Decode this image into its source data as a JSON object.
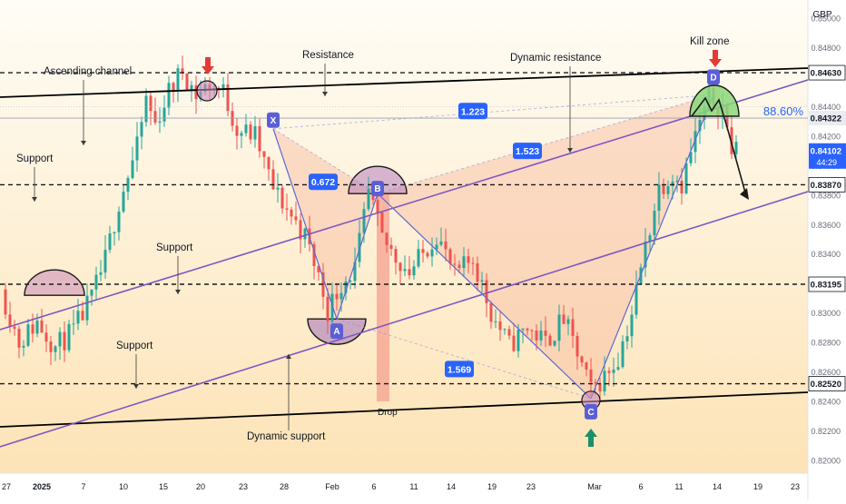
{
  "currency": "GBP",
  "colors": {
    "candle_up": "#26a69a",
    "candle_down": "#ef5350",
    "channel": "#000000",
    "dynamic": "#7e57c2",
    "harmonic_fill": "#f8bba0",
    "label_bg": "#2962ff",
    "point_bg": "#5b5fd6",
    "price_bg": "#2962ff",
    "kill_zone": "#8bd77a",
    "arrow_red": "#e53935",
    "arrow_green": "#1b8f6a",
    "bg_top": "#fffdf6",
    "bg_bottom": "#fde3b6"
  },
  "chart_data": {
    "type": "candlestick",
    "title": "",
    "xlabel": "",
    "ylabel": "",
    "ylim": [
      0.8184,
      0.8526
    ],
    "y_ticks": [
      "0.85000",
      "0.84800",
      "0.84600",
      "0.84400",
      "0.84200",
      "0.84000",
      "0.83800",
      "0.83600",
      "0.83400",
      "0.83200",
      "0.83000",
      "0.82800",
      "0.82600",
      "0.82400",
      "0.82200",
      "0.82000"
    ],
    "x_ticks": [
      "27",
      "2025",
      "7",
      "10",
      "15",
      "20",
      "23",
      "28",
      "Feb",
      "6",
      "11",
      "14",
      "19",
      "23",
      "Mar",
      "6",
      "11",
      "14",
      "19",
      "23"
    ],
    "price_anchors": [
      {
        "d": 0,
        "p": 0.8316
      },
      {
        "d": 2,
        "p": 0.828
      },
      {
        "d": 4,
        "p": 0.8294
      },
      {
        "d": 6,
        "p": 0.8277
      },
      {
        "d": 8,
        "p": 0.8288
      },
      {
        "d": 10,
        "p": 0.831
      },
      {
        "d": 11.5,
        "p": 0.8336
      },
      {
        "d": 13,
        "p": 0.8375
      },
      {
        "d": 15,
        "p": 0.8412
      },
      {
        "d": 16,
        "p": 0.8445
      },
      {
        "d": 17,
        "p": 0.8428
      },
      {
        "d": 18.5,
        "p": 0.845
      },
      {
        "d": 20,
        "p": 0.8465
      },
      {
        "d": 21.5,
        "p": 0.8448
      },
      {
        "d": 23,
        "p": 0.8455
      },
      {
        "d": 24.5,
        "p": 0.845
      },
      {
        "d": 26,
        "p": 0.8425
      },
      {
        "d": 28,
        "p": 0.842
      },
      {
        "d": 30,
        "p": 0.8384
      },
      {
        "d": 32,
        "p": 0.8366
      },
      {
        "d": 33.5,
        "p": 0.8352
      },
      {
        "d": 35,
        "p": 0.8325
      },
      {
        "d": 36,
        "p": 0.8302
      },
      {
        "d": 37.5,
        "p": 0.832
      },
      {
        "d": 39,
        "p": 0.833
      },
      {
        "d": 40.5,
        "p": 0.8381
      },
      {
        "d": 42,
        "p": 0.835
      },
      {
        "d": 43.5,
        "p": 0.8338
      },
      {
        "d": 45,
        "p": 0.8328
      },
      {
        "d": 46.5,
        "p": 0.834
      },
      {
        "d": 48,
        "p": 0.8354
      },
      {
        "d": 50,
        "p": 0.8325
      },
      {
        "d": 52,
        "p": 0.8337
      },
      {
        "d": 54,
        "p": 0.83
      },
      {
        "d": 56,
        "p": 0.8278
      },
      {
        "d": 58,
        "p": 0.829
      },
      {
        "d": 60,
        "p": 0.828
      },
      {
        "d": 62,
        "p": 0.8296
      },
      {
        "d": 64,
        "p": 0.8264
      },
      {
        "d": 65,
        "p": 0.8247
      },
      {
        "d": 66.5,
        "p": 0.8257
      },
      {
        "d": 68,
        "p": 0.827
      },
      {
        "d": 69.5,
        "p": 0.83
      },
      {
        "d": 71,
        "p": 0.8345
      },
      {
        "d": 72.5,
        "p": 0.8385
      },
      {
        "d": 74,
        "p": 0.8395
      },
      {
        "d": 75,
        "p": 0.8388
      },
      {
        "d": 76.5,
        "p": 0.842
      },
      {
        "d": 78,
        "p": 0.8445
      },
      {
        "d": 79.5,
        "p": 0.844
      },
      {
        "d": 80.5,
        "p": 0.841
      }
    ],
    "levels": [
      {
        "price": 0.8463,
        "label": "0.84630"
      },
      {
        "price": 0.8387,
        "label": "0.83870"
      },
      {
        "price": 0.83195,
        "label": "0.83195"
      },
      {
        "price": 0.8252,
        "label": "0.82520"
      }
    ],
    "fib_level": {
      "price": 0.84322,
      "label": "0.84322",
      "ratio_label": "88.60%"
    },
    "current_price": {
      "price": 0.84102,
      "label": "0.84102",
      "countdown": "44:29"
    },
    "pattern_points": [
      {
        "name": "X",
        "d": 29.5,
        "p": 0.8425
      },
      {
        "name": "A",
        "d": 36.5,
        "p": 0.8296
      },
      {
        "name": "B",
        "d": 41.0,
        "p": 0.8381
      },
      {
        "name": "C",
        "d": 64.5,
        "p": 0.8242
      },
      {
        "name": "D",
        "d": 78.0,
        "p": 0.8448
      }
    ],
    "ratios": [
      {
        "label": "0.672",
        "d": 35.0,
        "p": 0.8389
      },
      {
        "label": "1.223",
        "d": 51.5,
        "p": 0.8437
      },
      {
        "label": "1.523",
        "d": 57.5,
        "p": 0.841
      },
      {
        "label": "1.569",
        "d": 50.0,
        "p": 0.8262
      }
    ],
    "annotations": {
      "ascending_channel": "Ascending channel",
      "resistance": "Resistance",
      "dynamic_resistance": "Dynamic resistance",
      "kill_zone": "Kill zone",
      "support_1": "Support",
      "support_2": "Support",
      "support_3": "Support",
      "dynamic_support": "Dynamic support",
      "drop": "Drop"
    }
  }
}
